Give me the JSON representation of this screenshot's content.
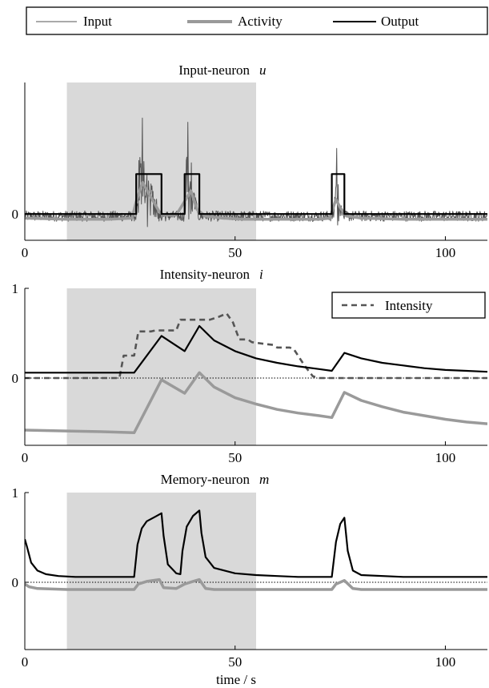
{
  "legend": {
    "items": [
      {
        "label": "Input",
        "color": "#555555",
        "style": "thin"
      },
      {
        "label": "Activity",
        "color": "#999999",
        "style": "thick"
      },
      {
        "label": "Output",
        "color": "#000000",
        "style": "medium"
      }
    ]
  },
  "xlabel": "time / s",
  "colors": {
    "input": "#555555",
    "activity": "#9a9a9a",
    "output": "#000000",
    "intensity": "#555555",
    "stimulus_shade": "#d9d9d9"
  },
  "chart_data": [
    {
      "id": "input",
      "type": "line",
      "title": "Input-neuron",
      "title_var": "u",
      "xlim": [
        0,
        110
      ],
      "ylim": [
        -0.25,
        1.25
      ],
      "xticks": [
        0,
        50,
        100
      ],
      "yticks": [
        0
      ],
      "ytick_labels": [
        "0"
      ],
      "shaded_region": [
        10,
        55
      ],
      "zero_line": false,
      "series": [
        {
          "name": "Input",
          "role": "input",
          "kind": "noisy_spikes",
          "baseline": -0.02,
          "bursts": [
            [
              26.5,
              32,
              1.15
            ],
            [
              38,
              41,
              1.25
            ],
            [
              73.5,
              75.5,
              0.9
            ]
          ]
        },
        {
          "name": "Activity",
          "role": "activity",
          "x": [
            0,
            10,
            20,
            25.5,
            26.5,
            28,
            30,
            32,
            33,
            36,
            38,
            39.5,
            41,
            43,
            47,
            52,
            60,
            65,
            70,
            72.5,
            74,
            75,
            76.5,
            80,
            90,
            100,
            110
          ],
          "y": [
            -0.04,
            -0.05,
            -0.05,
            -0.04,
            0.12,
            0.3,
            0.16,
            0.02,
            -0.01,
            -0.01,
            0.12,
            0.22,
            0.04,
            -0.02,
            -0.04,
            -0.05,
            -0.05,
            -0.05,
            -0.05,
            -0.04,
            0.14,
            0.06,
            -0.02,
            -0.04,
            -0.05,
            -0.05,
            -0.05
          ]
        },
        {
          "name": "Output",
          "role": "output",
          "x": [
            0,
            26.5,
            26.5,
            32.5,
            32.5,
            38,
            38,
            41.5,
            41.5,
            73,
            73,
            76,
            76,
            110
          ],
          "y": [
            0,
            0,
            0.38,
            0.38,
            0,
            0,
            0.38,
            0.38,
            0,
            0,
            0.38,
            0.38,
            0,
            0
          ]
        }
      ]
    },
    {
      "id": "intensity",
      "type": "line",
      "title": "Intensity-neuron",
      "title_var": "i",
      "xlim": [
        0,
        110
      ],
      "ylim": [
        -0.75,
        1
      ],
      "xticks": [
        0,
        50,
        100
      ],
      "yticks": [
        0,
        1
      ],
      "ytick_labels": [
        "0",
        "1"
      ],
      "shaded_region": [
        10,
        55
      ],
      "zero_line": true,
      "inner_legend": {
        "label": "Intensity",
        "position": "top-right"
      },
      "series": [
        {
          "name": "Intensity",
          "role": "intensity",
          "x": [
            0,
            22.5,
            23.5,
            26,
            27,
            30,
            31,
            36,
            37,
            44,
            46,
            48,
            49.5,
            51,
            53,
            54,
            57,
            59,
            60,
            63,
            64,
            66.5,
            68.5,
            70,
            110
          ],
          "y": [
            0,
            0,
            0.25,
            0.25,
            0.52,
            0.52,
            0.53,
            0.53,
            0.65,
            0.65,
            0.68,
            0.72,
            0.62,
            0.43,
            0.43,
            0.4,
            0.38,
            0.37,
            0.34,
            0.34,
            0.32,
            0.14,
            0.02,
            0,
            0
          ]
        },
        {
          "name": "Output",
          "role": "output",
          "x": [
            0,
            26,
            32.5,
            38,
            41.5,
            45,
            50,
            55,
            60,
            65,
            70,
            73,
            76,
            80,
            85,
            90,
            95,
            100,
            105,
            110
          ],
          "y": [
            0.06,
            0.06,
            0.47,
            0.3,
            0.58,
            0.42,
            0.3,
            0.22,
            0.17,
            0.13,
            0.1,
            0.08,
            0.28,
            0.22,
            0.17,
            0.14,
            0.11,
            0.09,
            0.08,
            0.07
          ]
        },
        {
          "name": "Activity",
          "role": "activity",
          "x": [
            0,
            10,
            20,
            26,
            32.5,
            38,
            41.5,
            45,
            50,
            55,
            60,
            65,
            70,
            73,
            76,
            80,
            85,
            90,
            95,
            100,
            105,
            110
          ],
          "y": [
            -0.58,
            -0.59,
            -0.6,
            -0.61,
            -0.02,
            -0.17,
            0.06,
            -0.1,
            -0.22,
            -0.29,
            -0.35,
            -0.39,
            -0.42,
            -0.44,
            -0.16,
            -0.25,
            -0.32,
            -0.38,
            -0.42,
            -0.46,
            -0.49,
            -0.51
          ]
        }
      ]
    },
    {
      "id": "memory",
      "type": "line",
      "title": "Memory-neuron",
      "title_var": "m",
      "xlim": [
        0,
        110
      ],
      "ylim": [
        -0.75,
        1
      ],
      "xticks": [
        0,
        50,
        100
      ],
      "yticks": [
        0,
        1
      ],
      "ytick_labels": [
        "0",
        "1"
      ],
      "shaded_region": [
        10,
        55
      ],
      "zero_line": true,
      "series": [
        {
          "name": "Output",
          "role": "output",
          "x": [
            0,
            0.5,
            1.5,
            3,
            5,
            8,
            12,
            20,
            26,
            26.8,
            27.8,
            29,
            31,
            32.5,
            33,
            34,
            36,
            37,
            37.5,
            38.5,
            40,
            41.5,
            42,
            43,
            45,
            50,
            55,
            60,
            65,
            70,
            73,
            74,
            75,
            76,
            76.8,
            78,
            80,
            90,
            100,
            110
          ],
          "y": [
            0.48,
            0.4,
            0.22,
            0.13,
            0.09,
            0.07,
            0.06,
            0.06,
            0.06,
            0.42,
            0.6,
            0.68,
            0.73,
            0.77,
            0.52,
            0.2,
            0.1,
            0.09,
            0.35,
            0.62,
            0.74,
            0.8,
            0.55,
            0.28,
            0.16,
            0.1,
            0.08,
            0.07,
            0.06,
            0.06,
            0.06,
            0.45,
            0.65,
            0.72,
            0.35,
            0.13,
            0.08,
            0.06,
            0.06,
            0.06
          ]
        },
        {
          "name": "Activity",
          "role": "activity",
          "x": [
            0,
            1,
            3,
            10,
            20,
            26,
            27,
            29,
            32,
            33,
            36,
            38,
            40,
            41.5,
            43,
            45,
            50,
            60,
            70,
            73,
            74,
            76,
            78,
            80,
            90,
            100,
            110
          ],
          "y": [
            -0.02,
            -0.05,
            -0.07,
            -0.08,
            -0.08,
            -0.08,
            -0.02,
            0.01,
            0.03,
            -0.06,
            -0.07,
            -0.02,
            0.01,
            0.03,
            -0.07,
            -0.08,
            -0.08,
            -0.08,
            -0.08,
            -0.08,
            -0.02,
            0.02,
            -0.07,
            -0.08,
            -0.08,
            -0.08,
            -0.08
          ]
        }
      ]
    }
  ]
}
